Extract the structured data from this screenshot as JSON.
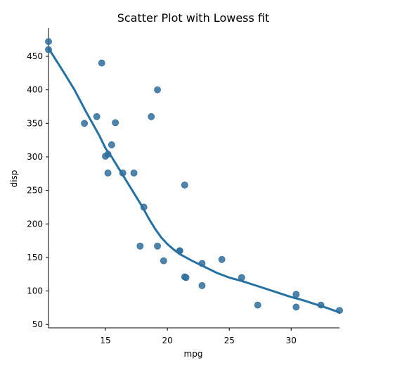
{
  "chart_data": {
    "type": "scatter",
    "title": "Scatter Plot with Lowess fit",
    "xlabel": "mpg",
    "ylabel": "disp",
    "xlim": [
      10.4,
      33.9
    ],
    "ylim": [
      45,
      492
    ],
    "grid": false,
    "x_ticks": [
      15,
      20,
      25,
      30
    ],
    "y_ticks": [
      50,
      100,
      150,
      200,
      250,
      300,
      350,
      400,
      450
    ],
    "colors": {
      "points": "#2f6f9e",
      "lowess_line": "#2472a4",
      "axis": "#000000"
    },
    "series": [
      {
        "type": "scatter",
        "points": [
          {
            "x": 10.4,
            "y": 472
          },
          {
            "x": 10.4,
            "y": 460
          },
          {
            "x": 13.3,
            "y": 350
          },
          {
            "x": 14.3,
            "y": 360
          },
          {
            "x": 14.7,
            "y": 440
          },
          {
            "x": 15.0,
            "y": 301
          },
          {
            "x": 15.2,
            "y": 276
          },
          {
            "x": 15.2,
            "y": 304
          },
          {
            "x": 15.5,
            "y": 318
          },
          {
            "x": 15.8,
            "y": 351
          },
          {
            "x": 16.4,
            "y": 276
          },
          {
            "x": 17.3,
            "y": 276
          },
          {
            "x": 17.8,
            "y": 167
          },
          {
            "x": 18.1,
            "y": 225
          },
          {
            "x": 18.7,
            "y": 360
          },
          {
            "x": 19.2,
            "y": 167
          },
          {
            "x": 19.2,
            "y": 400
          },
          {
            "x": 19.7,
            "y": 145
          },
          {
            "x": 21.0,
            "y": 160
          },
          {
            "x": 21.0,
            "y": 160
          },
          {
            "x": 21.4,
            "y": 121
          },
          {
            "x": 21.4,
            "y": 258
          },
          {
            "x": 21.5,
            "y": 120
          },
          {
            "x": 22.8,
            "y": 108
          },
          {
            "x": 22.8,
            "y": 141
          },
          {
            "x": 24.4,
            "y": 147
          },
          {
            "x": 26.0,
            "y": 120
          },
          {
            "x": 27.3,
            "y": 79
          },
          {
            "x": 30.4,
            "y": 76
          },
          {
            "x": 30.4,
            "y": 95
          },
          {
            "x": 32.4,
            "y": 79
          },
          {
            "x": 33.9,
            "y": 71
          }
        ]
      },
      {
        "type": "line",
        "points": [
          {
            "x": 10.4,
            "y": 462
          },
          {
            "x": 11.5,
            "y": 430
          },
          {
            "x": 12.5,
            "y": 400
          },
          {
            "x": 13.5,
            "y": 365
          },
          {
            "x": 14.5,
            "y": 332
          },
          {
            "x": 15.0,
            "y": 313
          },
          {
            "x": 15.5,
            "y": 300
          },
          {
            "x": 16.0,
            "y": 285
          },
          {
            "x": 16.5,
            "y": 270
          },
          {
            "x": 17.0,
            "y": 255
          },
          {
            "x": 17.5,
            "y": 240
          },
          {
            "x": 18.0,
            "y": 225
          },
          {
            "x": 18.5,
            "y": 208
          },
          {
            "x": 19.0,
            "y": 193
          },
          {
            "x": 19.5,
            "y": 180
          },
          {
            "x": 20.0,
            "y": 170
          },
          {
            "x": 20.5,
            "y": 162
          },
          {
            "x": 21.0,
            "y": 155
          },
          {
            "x": 22.0,
            "y": 145
          },
          {
            "x": 23.0,
            "y": 136
          },
          {
            "x": 24.0,
            "y": 127
          },
          {
            "x": 25.0,
            "y": 120
          },
          {
            "x": 26.0,
            "y": 115
          },
          {
            "x": 27.0,
            "y": 109
          },
          {
            "x": 28.0,
            "y": 103
          },
          {
            "x": 29.0,
            "y": 97
          },
          {
            "x": 30.0,
            "y": 91
          },
          {
            "x": 31.0,
            "y": 86
          },
          {
            "x": 32.0,
            "y": 80
          },
          {
            "x": 33.0,
            "y": 74
          },
          {
            "x": 33.9,
            "y": 68
          }
        ]
      }
    ]
  }
}
